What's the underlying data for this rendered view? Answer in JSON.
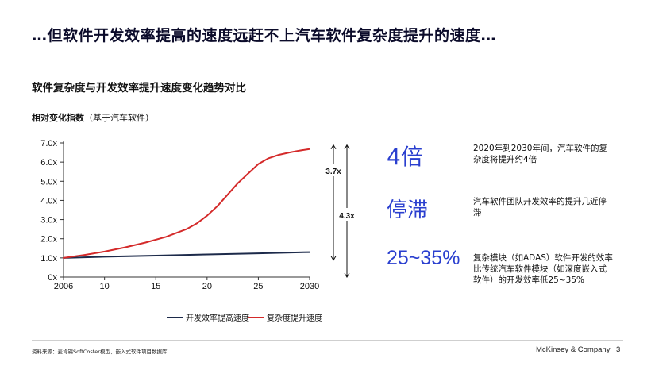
{
  "page": {
    "title": "…但软件开发效率提高的速度远赶不上汽车软件复杂度提升的速度…",
    "subtitle": "软件复杂度与开发效率提升速度变化趋势对比",
    "ylabel_bold": "相对变化指数",
    "ylabel_rest": "（基于汽车软件）"
  },
  "chart_data": {
    "type": "line",
    "title": "软件复杂度与开发效率提升速度变化趋势对比",
    "ylabel": "相对变化指数（基于汽车软件）",
    "xlabel": "",
    "xlim": [
      2006,
      2030
    ],
    "ylim": [
      0,
      7
    ],
    "x_ticks": [
      2006,
      2010,
      2015,
      2020,
      2025,
      2030
    ],
    "x_tick_labels": [
      "2006",
      "10",
      "15",
      "20",
      "25",
      "2030"
    ],
    "y_ticks": [
      0,
      1,
      2,
      3,
      4,
      5,
      6,
      7
    ],
    "y_tick_labels": [
      "0x",
      "1.0x",
      "2.0x",
      "3.0x",
      "4.0x",
      "5.0x",
      "6.0x",
      "7.0x"
    ],
    "series": [
      {
        "name": "开发效率提高速度",
        "color": "#1c2a4a",
        "x": [
          2006,
          2010,
          2015,
          2020,
          2025,
          2030
        ],
        "values": [
          1.0,
          1.06,
          1.12,
          1.18,
          1.24,
          1.3
        ]
      },
      {
        "name": "复杂度提升速度",
        "color": "#d42a2a",
        "x": [
          2006,
          2008,
          2010,
          2012,
          2014,
          2016,
          2018,
          2019,
          2020,
          2021,
          2022,
          2023,
          2024,
          2025,
          2026,
          2027,
          2028,
          2029,
          2030
        ],
        "values": [
          1.0,
          1.15,
          1.33,
          1.55,
          1.8,
          2.1,
          2.5,
          2.8,
          3.2,
          3.7,
          4.3,
          4.9,
          5.4,
          5.9,
          6.2,
          6.38,
          6.5,
          6.6,
          6.68
        ]
      }
    ],
    "annotations": [
      "3.7x",
      "4.3x"
    ],
    "legend_position": "bottom"
  },
  "stats": [
    {
      "value": "4倍",
      "desc": "2020年到2030年间，汽车软件的复杂度将提升约4倍"
    },
    {
      "value": "停滞",
      "desc": "汽车软件团队开发效率的提升几近停滞"
    },
    {
      "value": "25~35%",
      "desc": "复杂模块（如ADAS）软件开发的效率比传统汽车软件模块（如深度嵌入式软件）的开发效率低25~35%"
    }
  ],
  "footer": {
    "source": "资料来源：麦肯锡SoftCoster模型，嵌入式软件项目数据库",
    "brand": "McKinsey & Company",
    "page_number": "3"
  },
  "colors": {
    "accent_blue": "#2a3fcf",
    "navy_line": "#1c2a4a",
    "red_line": "#d42a2a"
  }
}
